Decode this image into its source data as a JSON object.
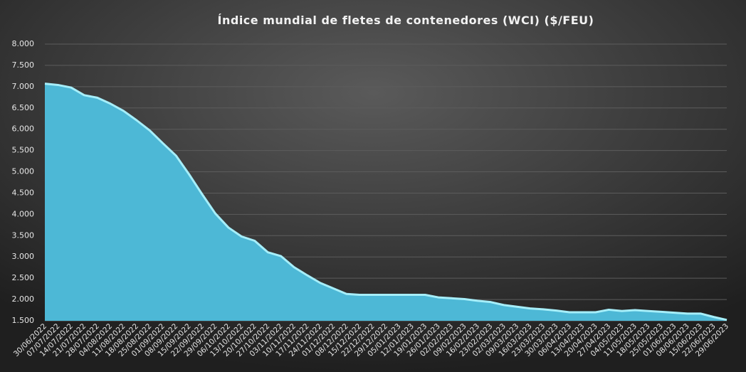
{
  "chart_data": {
    "type": "area",
    "title": "Índice mundial de fletes de contenedores (WCI) ($/FEU)",
    "categories": [
      "30/06/2022",
      "07/07/2022",
      "14/07/2022",
      "21/07/2022",
      "28/07/2022",
      "04/08/2022",
      "11/08/2022",
      "18/08/2022",
      "25/08/2022",
      "01/09/2022",
      "08/09/2022",
      "15/09/2022",
      "22/09/2022",
      "29/09/2022",
      "06/10/2022",
      "13/10/2022",
      "20/10/2022",
      "27/10/2022",
      "03/11/2022",
      "10/11/2022",
      "17/11/2022",
      "24/11/2022",
      "01/12/2022",
      "08/12/2022",
      "15/12/2022",
      "22/12/2022",
      "29/12/2022",
      "05/01/2023",
      "12/01/2023",
      "19/01/2023",
      "26/01/2023",
      "02/02/2023",
      "09/02/2023",
      "16/02/2023",
      "23/02/2023",
      "02/03/2023",
      "09/03/2023",
      "16/03/2023",
      "23/03/2023",
      "30/03/2023",
      "06/04/2023",
      "13/04/2023",
      "20/04/2023",
      "27/04/2023",
      "04/05/2023",
      "11/05/2023",
      "18/05/2023",
      "25/05/2023",
      "01/06/2023",
      "08/06/2023",
      "15/06/2023",
      "22/06/2023",
      "29/06/2023"
    ],
    "values": [
      7070,
      7040,
      6980,
      6800,
      6740,
      6600,
      6430,
      6210,
      5970,
      5670,
      5380,
      4940,
      4470,
      4020,
      3690,
      3480,
      3380,
      3110,
      3020,
      2760,
      2570,
      2390,
      2260,
      2130,
      2110,
      2110,
      2110,
      2110,
      2110,
      2110,
      2050,
      2030,
      2010,
      1970,
      1940,
      1870,
      1830,
      1790,
      1770,
      1740,
      1700,
      1700,
      1700,
      1760,
      1730,
      1750,
      1730,
      1710,
      1690,
      1670,
      1670,
      1590,
      1520
    ],
    "color": "#4db8d6",
    "line_color": "#a6eef9",
    "ylim": [
      1500,
      8000
    ],
    "yticks": [
      {
        "value": 1500,
        "label": "1.500"
      },
      {
        "value": 2000,
        "label": "2.000"
      },
      {
        "value": 2500,
        "label": "2.500"
      },
      {
        "value": 3000,
        "label": "3.000"
      },
      {
        "value": 3500,
        "label": "3.500"
      },
      {
        "value": 4000,
        "label": "4.000"
      },
      {
        "value": 4500,
        "label": "4.500"
      },
      {
        "value": 5000,
        "label": "5.000"
      },
      {
        "value": 5500,
        "label": "5.500"
      },
      {
        "value": 6000,
        "label": "6.000"
      },
      {
        "value": 6500,
        "label": "6.500"
      },
      {
        "value": 7000,
        "label": "7.000"
      },
      {
        "value": 7500,
        "label": "7.500"
      },
      {
        "value": 8000,
        "label": "8.000"
      }
    ],
    "grid": true
  }
}
